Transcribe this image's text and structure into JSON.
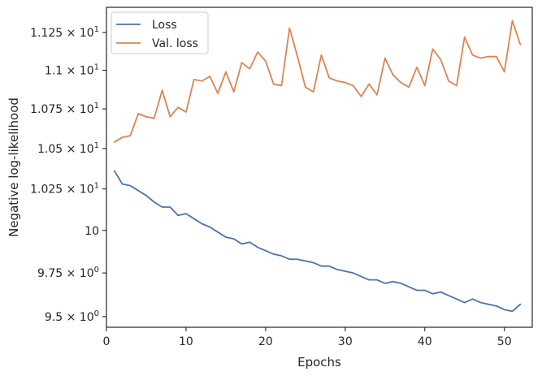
{
  "chart_data": {
    "type": "line",
    "xlabel": "Epochs",
    "ylabel": "Negative log-likelihood",
    "xlim": [
      0,
      53.5
    ],
    "ylim": [
      9.44,
      11.42
    ],
    "yscale": "log",
    "grid": false,
    "legend_position": "top-left",
    "x_ticks": [
      {
        "value": 0,
        "label": "0"
      },
      {
        "value": 10,
        "label": "10"
      },
      {
        "value": 20,
        "label": "20"
      },
      {
        "value": 30,
        "label": "30"
      },
      {
        "value": 40,
        "label": "40"
      },
      {
        "value": 50,
        "label": "50"
      }
    ],
    "y_ticks": [
      {
        "value": 9.5,
        "base": "9.5",
        "sup": "0"
      },
      {
        "value": 9.75,
        "base": "9.75",
        "sup": "0"
      },
      {
        "value": 10,
        "base": "10",
        "sup": ""
      },
      {
        "value": 10.25,
        "base": "1.025",
        "sup": "1"
      },
      {
        "value": 10.5,
        "base": "1.05",
        "sup": "1"
      },
      {
        "value": 10.75,
        "base": "1.075",
        "sup": "1"
      },
      {
        "value": 11.0,
        "base": "1.1",
        "sup": "1"
      },
      {
        "value": 11.25,
        "base": "1.125",
        "sup": "1"
      }
    ],
    "x": [
      1,
      2,
      3,
      4,
      5,
      6,
      7,
      8,
      9,
      10,
      11,
      12,
      13,
      14,
      15,
      16,
      17,
      18,
      19,
      20,
      21,
      22,
      23,
      24,
      25,
      26,
      27,
      28,
      29,
      30,
      31,
      32,
      33,
      34,
      35,
      36,
      37,
      38,
      39,
      40,
      41,
      42,
      43,
      44,
      45,
      46,
      47,
      48,
      49,
      50,
      51,
      52
    ],
    "series": [
      {
        "name": "Loss",
        "color": "#4c72b0",
        "values": [
          10.36,
          10.28,
          10.27,
          10.24,
          10.21,
          10.17,
          10.14,
          10.14,
          10.09,
          10.1,
          10.07,
          10.04,
          10.02,
          9.99,
          9.96,
          9.95,
          9.92,
          9.93,
          9.9,
          9.88,
          9.86,
          9.85,
          9.83,
          9.83,
          9.82,
          9.81,
          9.79,
          9.79,
          9.77,
          9.76,
          9.75,
          9.73,
          9.71,
          9.71,
          9.69,
          9.7,
          9.69,
          9.67,
          9.65,
          9.65,
          9.63,
          9.64,
          9.62,
          9.6,
          9.58,
          9.6,
          9.58,
          9.57,
          9.56,
          9.54,
          9.53,
          9.57
        ]
      },
      {
        "name": "Val. loss",
        "color": "#dd8452",
        "values": [
          10.54,
          10.57,
          10.58,
          10.72,
          10.7,
          10.69,
          10.87,
          10.7,
          10.76,
          10.73,
          10.94,
          10.93,
          10.96,
          10.85,
          10.99,
          10.86,
          11.05,
          11.01,
          11.12,
          11.06,
          10.91,
          10.9,
          11.28,
          11.09,
          10.89,
          10.86,
          11.1,
          10.95,
          10.93,
          10.92,
          10.9,
          10.83,
          10.91,
          10.84,
          11.08,
          10.97,
          10.92,
          10.89,
          11.02,
          10.9,
          11.14,
          11.07,
          10.93,
          10.9,
          11.22,
          11.1,
          11.08,
          11.09,
          11.09,
          10.99,
          11.33,
          11.17
        ]
      }
    ]
  }
}
